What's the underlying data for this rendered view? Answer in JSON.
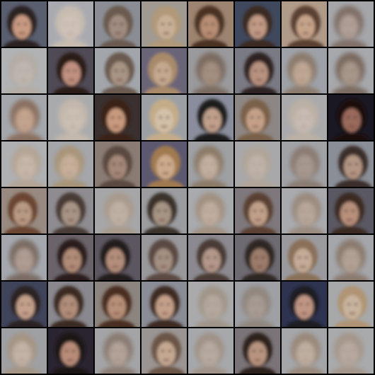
{
  "grid": {
    "rows": 8,
    "cols": 8,
    "images": [
      {
        "bg": "#5a5f70",
        "face": "#c89a82",
        "hair": "#2a2020",
        "tone": "dark"
      },
      {
        "bg": "#a8aab0",
        "face": "#d0c2b8",
        "hair": "#c8bcb0",
        "tone": "faded"
      },
      {
        "bg": "#8a8e94",
        "face": "#a08c80",
        "hair": "#6a5a50",
        "tone": "mid"
      },
      {
        "bg": "#a09a92",
        "face": "#c8b098",
        "hair": "#b09878",
        "tone": "mid"
      },
      {
        "bg": "#9c8470",
        "face": "#b88e74",
        "hair": "#4a3024",
        "tone": "dark"
      },
      {
        "bg": "#40485e",
        "face": "#c09a84",
        "hair": "#3a2a24",
        "tone": "dark"
      },
      {
        "bg": "#b09a88",
        "face": "#c6a48a",
        "hair": "#5a4030",
        "tone": "dark"
      },
      {
        "bg": "#a4a6aa",
        "face": "#b0a098",
        "hair": "#807068",
        "tone": "faded"
      },
      {
        "bg": "#b0b2b4",
        "face": "#c0b8b0",
        "hair": "#b4aca4",
        "tone": "faded"
      },
      {
        "bg": "#504a56",
        "face": "#c09080",
        "hair": "#2a1a18",
        "tone": "dark"
      },
      {
        "bg": "#a2a6ac",
        "face": "#a89484",
        "hair": "#6a5a50",
        "tone": "mid"
      },
      {
        "bg": "#6a6478",
        "face": "#c4a890",
        "hair": "#a88a6a",
        "tone": "mid"
      },
      {
        "bg": "#9a9a9c",
        "face": "#a49080",
        "hair": "#7a6a60",
        "tone": "faded"
      },
      {
        "bg": "#7a7a84",
        "face": "#b89280",
        "hair": "#2e2220",
        "tone": "dark"
      },
      {
        "bg": "#9ea2a8",
        "face": "#c0a894",
        "hair": "#8a7a6c",
        "tone": "faded"
      },
      {
        "bg": "#a6a8ac",
        "face": "#a8988c",
        "hair": "#7a6a60",
        "tone": "faded"
      },
      {
        "bg": "#a4a8ac",
        "face": "#c4a690",
        "hair": "#8a7060",
        "tone": "faded"
      },
      {
        "bg": "#a8aaac",
        "face": "#ccc0b4",
        "hair": "#c4b8ac",
        "tone": "faded"
      },
      {
        "bg": "#3a3030",
        "face": "#c89a7e",
        "hair": "#3a2418",
        "tone": "dark"
      },
      {
        "bg": "#9ca0a4",
        "face": "#d2c0a8",
        "hair": "#c4ac88",
        "tone": "mid"
      },
      {
        "bg": "#8a8e9c",
        "face": "#c0a08c",
        "hair": "#1e1a1e",
        "tone": "dark"
      },
      {
        "bg": "#8c8684",
        "face": "#c4a088",
        "hair": "#7a6048",
        "tone": "mid"
      },
      {
        "bg": "#aaaaac",
        "face": "#c8bcb4",
        "hair": "#bcb0a4",
        "tone": "faded"
      },
      {
        "bg": "#1a1822",
        "face": "#9a6a5c",
        "hair": "#1a1010",
        "tone": "dark"
      },
      {
        "bg": "#aeb0b2",
        "face": "#c8b8aa",
        "hair": "#b4a494",
        "tone": "faded"
      },
      {
        "bg": "#a4a6aa",
        "face": "#c8b09c",
        "hair": "#a89478",
        "tone": "faded"
      },
      {
        "bg": "#8a7c74",
        "face": "#a48878",
        "hair": "#5a4840",
        "tone": "mid"
      },
      {
        "bg": "#5c5870",
        "face": "#ccaa8c",
        "hair": "#a07a50",
        "tone": "dark"
      },
      {
        "bg": "#9ea0a4",
        "face": "#c4b0a0",
        "hair": "#8c7a68",
        "tone": "faded"
      },
      {
        "bg": "#a8a8aa",
        "face": "#c0b4aa",
        "hair": "#b0a498",
        "tone": "faded"
      },
      {
        "bg": "#a0a2a6",
        "face": "#a89a90",
        "hair": "#8a7c72",
        "tone": "faded"
      },
      {
        "bg": "#8a8e96",
        "face": "#b49684",
        "hair": "#3a2e2a",
        "tone": "dark"
      },
      {
        "bg": "#988a80",
        "face": "#b89a84",
        "hair": "#6a4430",
        "tone": "mid"
      },
      {
        "bg": "#8e8c90",
        "face": "#a89486",
        "hair": "#4a3a34",
        "tone": "mid"
      },
      {
        "bg": "#a6a6a8",
        "face": "#c0b2a6",
        "hair": "#a89a8c",
        "tone": "faded"
      },
      {
        "bg": "#9a9ca0",
        "face": "#a69484",
        "hair": "#3a302c",
        "tone": "mid"
      },
      {
        "bg": "#a8aaae",
        "face": "#c0aea0",
        "hair": "#a09080",
        "tone": "faded"
      },
      {
        "bg": "#7e787c",
        "face": "#c0a08a",
        "hair": "#5a4030",
        "tone": "mid"
      },
      {
        "bg": "#a8aaae",
        "face": "#b8a89c",
        "hair": "#9a8a7e",
        "tone": "faded"
      },
      {
        "bg": "#5a5862",
        "face": "#b8907c",
        "hair": "#3a2a24",
        "tone": "dark"
      },
      {
        "bg": "#a4a8ae",
        "face": "#b09e94",
        "hair": "#7a6c64",
        "tone": "faded"
      },
      {
        "bg": "#6a646a",
        "face": "#b08c78",
        "hair": "#2a1e1c",
        "tone": "dark"
      },
      {
        "bg": "#5c5660",
        "face": "#b48e7c",
        "hair": "#221a1a",
        "tone": "dark"
      },
      {
        "bg": "#98989c",
        "face": "#a49082",
        "hair": "#5a4a42",
        "tone": "mid"
      },
      {
        "bg": "#8c8a90",
        "face": "#b4988a",
        "hair": "#4a3a34",
        "tone": "mid"
      },
      {
        "bg": "#6e6a72",
        "face": "#9c7c6c",
        "hair": "#2e2624",
        "tone": "dark"
      },
      {
        "bg": "#9a9a9e",
        "face": "#c4ac98",
        "hair": "#8a7058",
        "tone": "mid"
      },
      {
        "bg": "#a4a6aa",
        "face": "#b4a296",
        "hair": "#8a7a6e",
        "tone": "faded"
      },
      {
        "bg": "#40445a",
        "face": "#c4a08c",
        "hair": "#2a2222",
        "tone": "dark"
      },
      {
        "bg": "#88888e",
        "face": "#b08e7a",
        "hair": "#3a2a22",
        "tone": "dark"
      },
      {
        "bg": "#8c847e",
        "face": "#b89078",
        "hair": "#4a2e20",
        "tone": "dark"
      },
      {
        "bg": "#8a8c96",
        "face": "#c4a08a",
        "hair": "#3e2c24",
        "tone": "dark"
      },
      {
        "bg": "#aaaaac",
        "face": "#b6aaa0",
        "hair": "#a09488",
        "tone": "faded"
      },
      {
        "bg": "#9ea0a6",
        "face": "#a89c94",
        "hair": "#90867e",
        "tone": "faded"
      },
      {
        "bg": "#2e3450",
        "face": "#c09684",
        "hair": "#1e1a22",
        "tone": "dark"
      },
      {
        "bg": "#a6a8aa",
        "face": "#c8b49e",
        "hair": "#b09474",
        "tone": "mid"
      },
      {
        "bg": "#9ea0a4",
        "face": "#c4b4a8",
        "hair": "#a49484",
        "tone": "faded"
      },
      {
        "bg": "#2a2430",
        "face": "#b88c78",
        "hair": "#1e1414",
        "tone": "dark"
      },
      {
        "bg": "#a4a4a6",
        "face": "#b4a49a",
        "hair": "#8a7c72",
        "tone": "faded"
      },
      {
        "bg": "#9a9492",
        "face": "#c4a892",
        "hair": "#6a5446",
        "tone": "mid"
      },
      {
        "bg": "#a6a8ac",
        "face": "#b8aca2",
        "hair": "#a09286",
        "tone": "faded"
      },
      {
        "bg": "#7a7478",
        "face": "#b89480",
        "hair": "#2e221e",
        "tone": "dark"
      },
      {
        "bg": "#a4a6aa",
        "face": "#c0b0a2",
        "hair": "#9a887a",
        "tone": "faded"
      },
      {
        "bg": "#a8aaac",
        "face": "#b8aaa0",
        "hair": "#a4968a",
        "tone": "faded"
      }
    ]
  }
}
